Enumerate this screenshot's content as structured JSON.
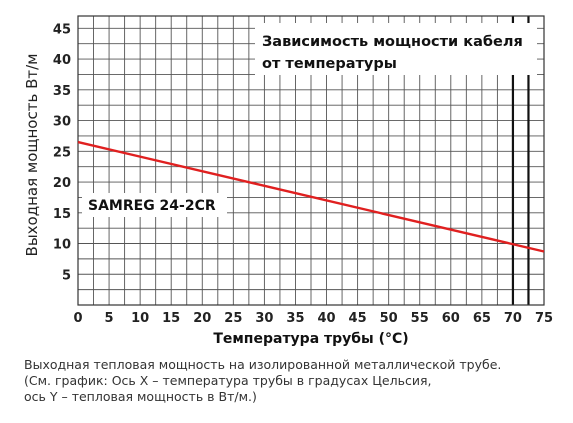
{
  "chart_data": {
    "type": "line",
    "title": [
      "Зависимость мощности кабеля",
      "от температуры"
    ],
    "xlabel": "Температура трубы (°С)",
    "ylabel": "Выходная мощность Вт/м",
    "x_ticks": [
      "0",
      "5",
      "10",
      "15",
      "20",
      "25",
      "30",
      "35",
      "40",
      "45",
      "50",
      "55",
      "60",
      "65",
      "70",
      "75"
    ],
    "y_ticks": [
      "5",
      "10",
      "15",
      "20",
      "25",
      "30",
      "35",
      "40",
      "45"
    ],
    "xlim": [
      0,
      75
    ],
    "ylim": [
      0,
      47
    ],
    "grid": true,
    "minor_grid_step_x": 2.5,
    "minor_grid_step_y": 2.5,
    "highlight_x": [
      70,
      72.5
    ],
    "series": [
      {
        "name": "SAMREG 24-2CR",
        "color": "#e02020",
        "x": [
          0,
          75
        ],
        "y": [
          26.5,
          8.7
        ]
      }
    ]
  },
  "caption": [
    "Выходная тепловая мощность на изолированной металлической трубе.",
    "(См. график: Ось X – температура трубы в градусах Цельсия,",
    "ось Y –  тепловая мощность в Вт/м.)"
  ]
}
